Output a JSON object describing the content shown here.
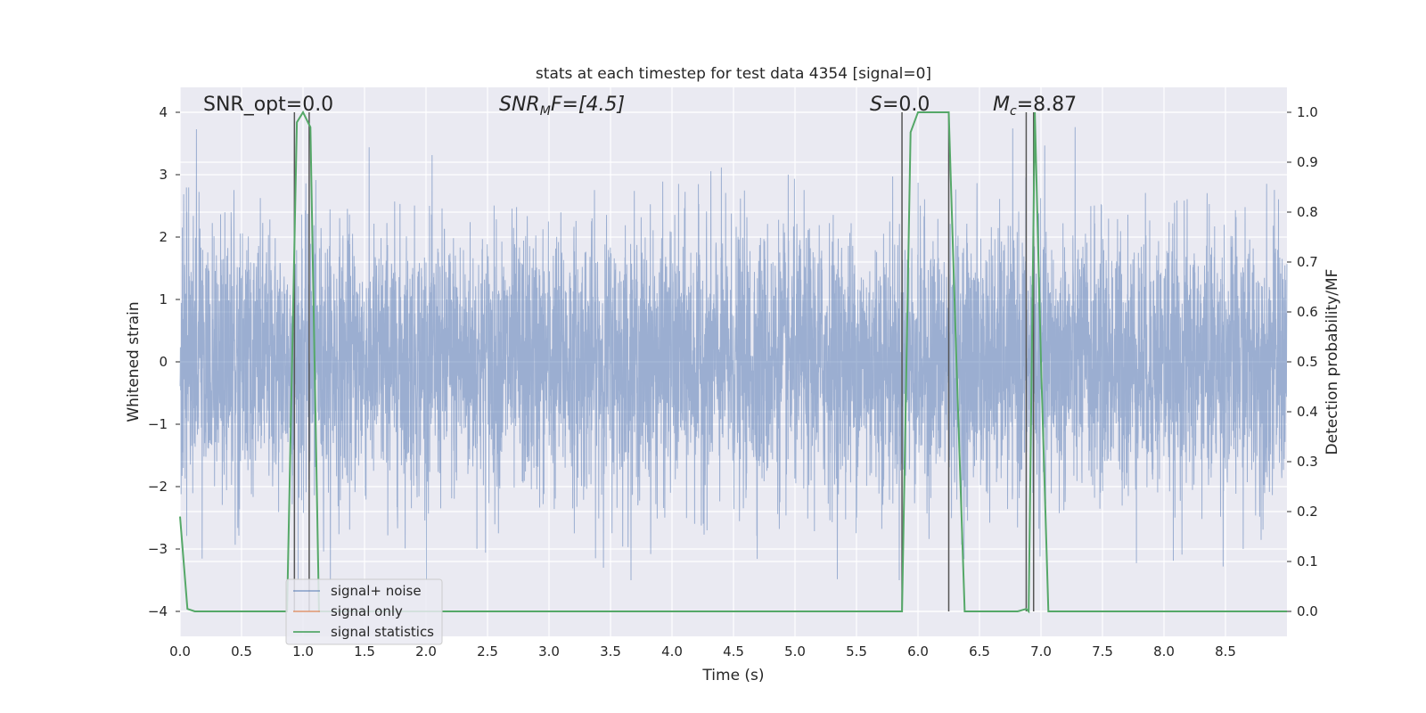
{
  "chart_data": {
    "type": "line",
    "title": "stats at each timestep for test data 4354 [signal=0]",
    "xlabel": "Time (s)",
    "ylabel": "Whitened strain",
    "y2label": "Detection probability/MF",
    "xlim": [
      0.0,
      9.0
    ],
    "ylim": [
      -4.4,
      4.4
    ],
    "y2lim": [
      -0.05,
      1.05
    ],
    "xticks": [
      "0.0",
      "0.5",
      "1.0",
      "1.5",
      "2.0",
      "2.5",
      "3.0",
      "3.5",
      "4.0",
      "4.5",
      "5.0",
      "5.5",
      "6.0",
      "6.5",
      "7.0",
      "7.5",
      "8.0",
      "8.5"
    ],
    "yticks": [
      "4",
      "3",
      "2",
      "1",
      "0",
      "−1",
      "−2",
      "−3",
      "−4"
    ],
    "y2ticks": [
      "1.0",
      "0.9",
      "0.8",
      "0.7",
      "0.6",
      "0.5",
      "0.4",
      "0.3",
      "0.2",
      "0.1",
      "0.0"
    ],
    "grid": true,
    "legend_position": "lower-left",
    "annotations": {
      "snr_opt": "SNR_opt=0.0",
      "snr_mf_base": "SNR",
      "snr_mf_sub": "M",
      "snr_mf_rest": "F=[4.5]",
      "s_italic": "S",
      "s_rest": "=0.0",
      "mc_base": "M",
      "mc_sub": "c",
      "mc_rest": "=8.87"
    },
    "series": [
      {
        "name": "signal+ noise",
        "color": "#4c72b0",
        "axis": "left",
        "description_shown": "dense whitened strain noise, roughly within [-3.5, 4.0]",
        "typical_range": [
          -3.5,
          4.0
        ]
      },
      {
        "name": "signal only",
        "color": "#dd8452",
        "axis": "left",
        "values": []
      },
      {
        "name": "signal statistics",
        "color": "#55a868",
        "axis": "right",
        "x": [
          0.0,
          0.06,
          0.12,
          0.87,
          0.95,
          1.0,
          1.06,
          1.13,
          1.2,
          5.87,
          5.94,
          6.0,
          6.06,
          6.25,
          6.31,
          6.38,
          6.81,
          6.88,
          6.9,
          6.95,
          7.0,
          7.06,
          9.0
        ],
        "values": [
          0.19,
          0.005,
          0.0,
          0.0,
          0.98,
          1.0,
          0.97,
          0.0,
          0.0,
          0.0,
          0.96,
          1.0,
          1.0,
          1.0,
          0.52,
          0.0,
          0.0,
          0.005,
          0.0,
          1.0,
          0.5,
          0.0,
          0.0
        ]
      }
    ],
    "vertical_markers": {
      "color": "#555555",
      "lines": [
        {
          "x": 0.93,
          "y2_bottom": 0.0,
          "y2_top": 1.0
        },
        {
          "x": 1.05,
          "y2_bottom": 0.0,
          "y2_top": 1.0
        },
        {
          "x": 5.87,
          "y2_bottom": 0.0,
          "y2_top": 1.0
        },
        {
          "x": 6.25,
          "y2_bottom": 0.0,
          "y2_top": 1.0
        },
        {
          "x": 6.88,
          "y2_bottom": 0.0,
          "y2_top": 1.0
        },
        {
          "x": 6.94,
          "y2_bottom": 0.0,
          "y2_top": 1.0
        }
      ]
    }
  }
}
